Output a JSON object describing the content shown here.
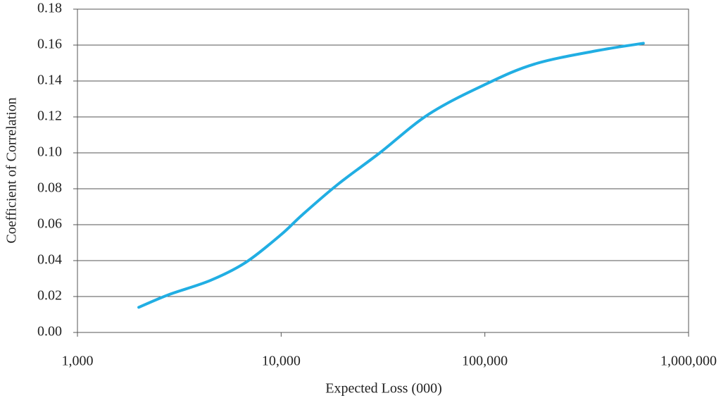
{
  "chart_data": {
    "type": "line",
    "x_label": "Expected Loss (000)",
    "y_label": "Coefficient of Correlation",
    "x": [
      2000,
      2800,
      4500,
      6700,
      10000,
      12700,
      19000,
      30500,
      53000,
      100000,
      176000,
      360000,
      600000
    ],
    "series": [
      {
        "color": "#21aee3",
        "values": [
          0.014,
          0.021,
          0.029,
          0.039,
          0.0545,
          0.0655,
          0.0825,
          0.1,
          0.1215,
          0.138,
          0.1495,
          0.157,
          0.161
        ]
      }
    ],
    "xscale": "log",
    "xlim": [
      1000,
      1000000
    ],
    "xticks": [
      {
        "value": 1000,
        "label": "1,000"
      },
      {
        "value": 10000,
        "label": "10,000"
      },
      {
        "value": 100000,
        "label": "100,000"
      },
      {
        "value": 1000000,
        "label": "1,000,000"
      }
    ],
    "ylim": [
      0,
      0.18
    ],
    "yticks": [
      {
        "value": 0,
        "label": "0.00"
      },
      {
        "value": 0.02,
        "label": "0.02"
      },
      {
        "value": 0.04,
        "label": "0.04"
      },
      {
        "value": 0.06,
        "label": "0.06"
      },
      {
        "value": 0.08,
        "label": "0.08"
      },
      {
        "value": 0.1,
        "label": "0.10"
      },
      {
        "value": 0.12,
        "label": "0.12"
      },
      {
        "value": 0.14,
        "label": "0.14"
      },
      {
        "value": 0.16,
        "label": "0.16"
      },
      {
        "value": 0.18,
        "label": "0.18"
      }
    ],
    "grid": true
  }
}
